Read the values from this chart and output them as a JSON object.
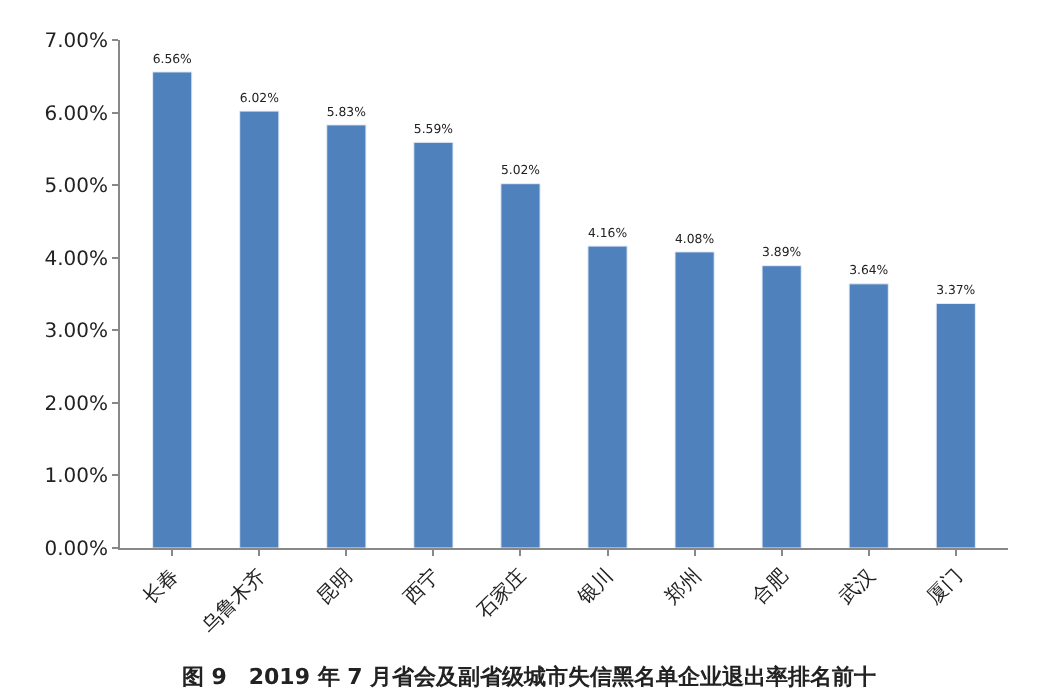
{
  "chart_data": {
    "type": "bar",
    "title": "图 9　2019 年 7 月省会及副省级城市失信黑名单企业退出率排名前十",
    "categories": [
      "长春",
      "乌鲁木齐",
      "昆明",
      "西宁",
      "石家庄",
      "银川",
      "郑州",
      "合肥",
      "武汉",
      "厦门"
    ],
    "values": [
      6.56,
      6.02,
      5.83,
      5.59,
      5.02,
      4.16,
      4.08,
      3.89,
      3.64,
      3.37
    ],
    "value_labels": [
      "6.56%",
      "6.02%",
      "5.83%",
      "5.59%",
      "5.02%",
      "4.16%",
      "4.08%",
      "3.89%",
      "3.64%",
      "3.37%"
    ],
    "color": "#4f81bd",
    "ylim": [
      0,
      7
    ],
    "yticks": [
      {
        "value": 0,
        "label": "0.00%"
      },
      {
        "value": 1,
        "label": "1.00%"
      },
      {
        "value": 2,
        "label": "2.00%"
      },
      {
        "value": 3,
        "label": "3.00%"
      },
      {
        "value": 4,
        "label": "4.00%"
      },
      {
        "value": 5,
        "label": "5.00%"
      },
      {
        "value": 6,
        "label": "6.00%"
      },
      {
        "value": 7,
        "label": "7.00%"
      }
    ],
    "legend": false
  }
}
